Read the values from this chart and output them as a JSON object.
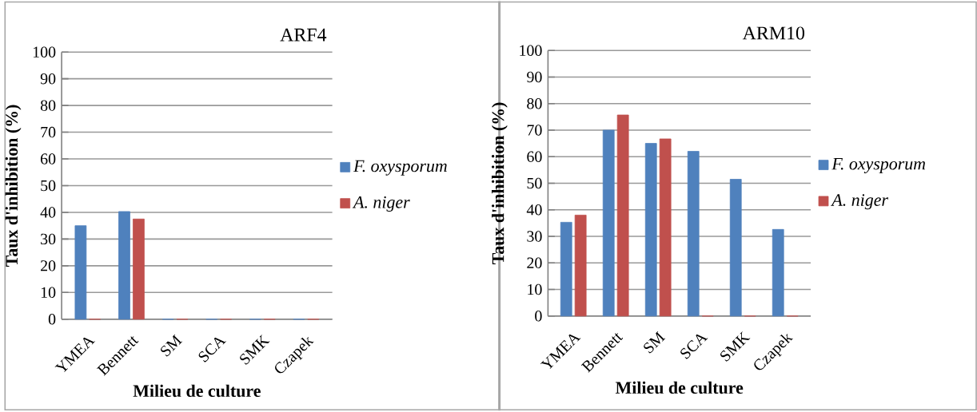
{
  "chart_data": [
    {
      "type": "bar",
      "title": "ARF4",
      "xlabel": "Milieu de culture",
      "ylabel": "Taux d'inhibition (%)",
      "categories": [
        "YMEA",
        "Bennett",
        "SM",
        "SCA",
        "SMK",
        "Czapek"
      ],
      "series": [
        {
          "name": "F. oxysporum",
          "color": "#4f81bd",
          "values": [
            35,
            40.3,
            0,
            0,
            0,
            0
          ]
        },
        {
          "name": "A. niger",
          "color": "#c0504d",
          "values": [
            0,
            37.5,
            0,
            0,
            0,
            0
          ]
        }
      ],
      "ylim": [
        0,
        100
      ],
      "yticks": [
        0,
        10,
        20,
        30,
        40,
        50,
        60,
        70,
        80,
        90,
        100
      ],
      "grid": "y",
      "legend": "right"
    },
    {
      "type": "bar",
      "title": "ARM10",
      "xlabel": "Milieu de culture",
      "ylabel": "Taux d'inhibition (%)",
      "categories": [
        "YMEA",
        "Bennett",
        "SM",
        "SCA",
        "SMK",
        "Czapek"
      ],
      "series": [
        {
          "name": "F. oxysporum",
          "color": "#4f81bd",
          "values": [
            35.3,
            70,
            65,
            62,
            51.5,
            32.6
          ]
        },
        {
          "name": "A. niger",
          "color": "#c0504d",
          "values": [
            38,
            75.7,
            66.7,
            0,
            0,
            0
          ]
        }
      ],
      "ylim": [
        0,
        100
      ],
      "yticks": [
        0,
        10,
        20,
        30,
        40,
        50,
        60,
        70,
        80,
        90,
        100
      ],
      "grid": "y",
      "legend": "right"
    }
  ]
}
